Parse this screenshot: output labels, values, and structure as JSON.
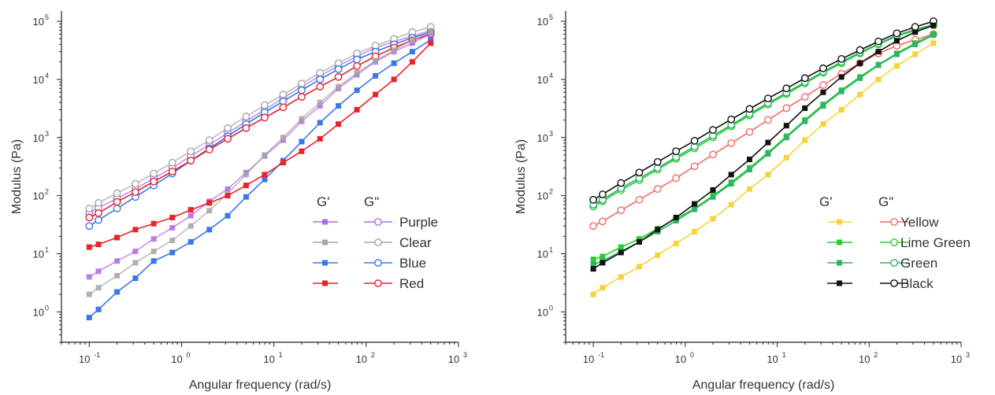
{
  "chart_data": [
    {
      "type": "line",
      "xlabel": "Angular frequency (rad/s)",
      "ylabel": "Modulus (Pa)",
      "xscale": "log",
      "yscale": "log",
      "xlim": [
        0.05,
        1000
      ],
      "ylim": [
        0.3,
        150000
      ],
      "xticks": [
        "10",
        "10",
        "10",
        "10",
        "10"
      ],
      "xtick_exps": [
        "-1",
        "0",
        "1",
        "2",
        "3"
      ],
      "yticks": [
        "10",
        "10",
        "10",
        "10",
        "10",
        "10"
      ],
      "ytick_exps": [
        "0",
        "1",
        "2",
        "3",
        "4",
        "5"
      ],
      "legend_headers": [
        "G'",
        "G\""
      ],
      "legend_position": "right",
      "grid": false,
      "x": [
        0.1,
        0.126,
        0.2,
        0.316,
        0.5,
        0.794,
        1.26,
        2,
        3.16,
        5,
        7.94,
        12.6,
        20,
        31.6,
        50,
        79.4,
        126,
        200,
        316,
        500
      ],
      "series": [
        {
          "name": "Purple",
          "color": "#b26be8",
          "g1": [
            4,
            5,
            7.5,
            11,
            18,
            28,
            45,
            80,
            130,
            250,
            480,
            900,
            1900,
            3500,
            7000,
            12000,
            20000,
            30000,
            42000,
            60000
          ],
          "g2": [
            50,
            62,
            90,
            130,
            200,
            300,
            480,
            750,
            1200,
            1900,
            3000,
            4800,
            7500,
            11500,
            17000,
            25000,
            35000,
            45000,
            55000,
            70000
          ]
        },
        {
          "name": "Clear",
          "color": "#a6a6a6",
          "g1": [
            2,
            2.6,
            4.2,
            7,
            11,
            17,
            30,
            55,
            110,
            230,
            500,
            1000,
            2100,
            4000,
            7500,
            13000,
            21000,
            32000,
            47000,
            65000
          ],
          "g2": [
            60,
            75,
            110,
            160,
            240,
            370,
            580,
            900,
            1450,
            2300,
            3600,
            5500,
            8500,
            13000,
            19000,
            28000,
            38000,
            50000,
            65000,
            80000
          ]
        },
        {
          "name": "Blue",
          "color": "#3a78e8",
          "g1": [
            0.8,
            1.1,
            2.2,
            3.8,
            7.5,
            10.5,
            16,
            26,
            45,
            95,
            190,
            400,
            850,
            1800,
            3500,
            6500,
            11500,
            19000,
            30000,
            48000
          ],
          "g2": [
            30,
            38,
            60,
            95,
            150,
            240,
            400,
            650,
            1050,
            1700,
            2700,
            4200,
            6500,
            10000,
            15000,
            22000,
            30000,
            40000,
            52000,
            65000
          ]
        },
        {
          "name": "Red",
          "color": "#e8232a",
          "g1": [
            13,
            14.5,
            19,
            26,
            33,
            42,
            57,
            75,
            100,
            150,
            230,
            370,
            580,
            950,
            1700,
            3000,
            5500,
            10000,
            20000,
            42000
          ],
          "g2": [
            42,
            50,
            78,
            115,
            175,
            260,
            400,
            620,
            950,
            1450,
            2200,
            3300,
            5000,
            7500,
            11000,
            17000,
            25000,
            35000,
            47000,
            60000
          ]
        }
      ]
    },
    {
      "type": "line",
      "xlabel": "Angular frequency (rad/s)",
      "ylabel": "Modulus (Pa)",
      "xscale": "log",
      "yscale": "log",
      "xlim": [
        0.05,
        1000
      ],
      "ylim": [
        0.3,
        150000
      ],
      "xticks": [
        "10",
        "10",
        "10",
        "10",
        "10"
      ],
      "xtick_exps": [
        "-1",
        "0",
        "1",
        "2",
        "3"
      ],
      "yticks": [
        "10",
        "10",
        "10",
        "10",
        "10",
        "10"
      ],
      "ytick_exps": [
        "0",
        "1",
        "2",
        "3",
        "4",
        "5"
      ],
      "legend_headers": [
        "G'",
        "G\""
      ],
      "legend_position": "right",
      "grid": false,
      "x": [
        0.1,
        0.126,
        0.2,
        0.316,
        0.5,
        0.794,
        1.26,
        2,
        3.16,
        5,
        7.94,
        12.6,
        20,
        31.6,
        50,
        79.4,
        126,
        200,
        316,
        500
      ],
      "series": [
        {
          "name": "Yellow",
          "g1color": "#f7d23a",
          "g2color": "#f36a64",
          "g1": [
            2,
            2.6,
            4,
            6,
            9.5,
            15,
            24,
            40,
            70,
            130,
            230,
            450,
            900,
            1700,
            3000,
            5500,
            10000,
            17000,
            27000,
            42000
          ],
          "g2": [
            30,
            36,
            56,
            85,
            130,
            200,
            320,
            510,
            800,
            1250,
            2000,
            3200,
            5000,
            8000,
            12500,
            19000,
            28000,
            38000,
            48000,
            60000
          ]
        },
        {
          "name": "Lime Green",
          "g1color": "#22d12a",
          "g2color": "#22d12a",
          "g1": [
            8,
            9,
            13,
            18,
            27,
            40,
            60,
            100,
            170,
            300,
            550,
            1050,
            2000,
            3700,
            6500,
            11000,
            18000,
            28000,
            42000,
            60000
          ],
          "g2": [
            65,
            80,
            125,
            185,
            280,
            430,
            650,
            1000,
            1550,
            2400,
            3700,
            5600,
            8500,
            13000,
            19000,
            28000,
            40000,
            55000,
            70000,
            85000
          ]
        },
        {
          "name": "Green",
          "g1color": "#2fb36a",
          "g2color": "#2fb36a",
          "g1": [
            6.5,
            7.5,
            11,
            16,
            24,
            37,
            58,
            95,
            160,
            280,
            520,
            1000,
            1900,
            3500,
            6200,
            10500,
            17500,
            27000,
            40000,
            58000
          ],
          "g2": [
            70,
            85,
            135,
            200,
            300,
            460,
            700,
            1080,
            1650,
            2550,
            3900,
            5900,
            9000,
            13500,
            20000,
            29000,
            41000,
            57000,
            72000,
            88000
          ]
        },
        {
          "name": "Black",
          "g1color": "#111111",
          "g2color": "#111111",
          "g1": [
            5.5,
            7,
            10.5,
            16,
            26,
            42,
            72,
            125,
            230,
            420,
            820,
            1600,
            3200,
            6000,
            11000,
            19000,
            30000,
            46000,
            65000,
            85000
          ],
          "g2": [
            85,
            105,
            165,
            250,
            380,
            580,
            880,
            1350,
            2050,
            3100,
            4700,
            7000,
            10500,
            15500,
            22500,
            32000,
            45000,
            62000,
            80000,
            100000
          ]
        }
      ]
    }
  ]
}
